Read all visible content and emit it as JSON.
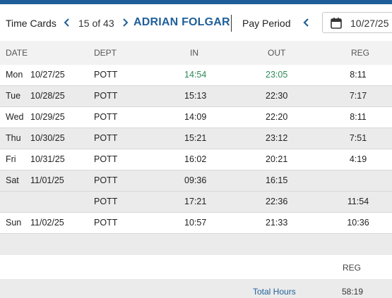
{
  "header": {
    "title": "Time Cards",
    "record_position": "15 of 43",
    "employee_name": "ADRIAN FOLGAR",
    "pay_period_label": "Pay Period",
    "pay_period_date": "10/27/25"
  },
  "columns": {
    "date": "DATE",
    "dept": "DEPT",
    "in": "IN",
    "out": "OUT",
    "reg": "REG"
  },
  "rows": [
    {
      "day": "Mon",
      "date": "10/27/25",
      "dept": "POTT",
      "in": "14:54",
      "out": "23:05",
      "reg": "8:11"
    },
    {
      "day": "Tue",
      "date": "10/28/25",
      "dept": "POTT",
      "in": "15:13",
      "out": "22:30",
      "reg": "7:17"
    },
    {
      "day": "Wed",
      "date": "10/29/25",
      "dept": "POTT",
      "in": "14:09",
      "out": "22:20",
      "reg": "8:11"
    },
    {
      "day": "Thu",
      "date": "10/30/25",
      "dept": "POTT",
      "in": "15:21",
      "out": "23:12",
      "reg": "7:51"
    },
    {
      "day": "Fri",
      "date": "10/31/25",
      "dept": "POTT",
      "in": "16:02",
      "out": "20:21",
      "reg": "4:19"
    },
    {
      "day": "Sat",
      "date": "11/01/25",
      "dept": "POTT",
      "in": "09:36",
      "out": "16:15",
      "reg": ""
    },
    {
      "day": "",
      "date": "",
      "dept": "POTT",
      "in": "17:21",
      "out": "22:36",
      "reg": "11:54"
    },
    {
      "day": "Sun",
      "date": "11/02/25",
      "dept": "POTT",
      "in": "10:57",
      "out": "21:33",
      "reg": "10:36"
    }
  ],
  "summary": {
    "reg_label": "REG",
    "total_hours_label": "Total Hours",
    "total_reg": "58:19"
  },
  "colors": {
    "brand_blue": "#1f5f99",
    "in_out_highlight": "#2e8b57"
  }
}
